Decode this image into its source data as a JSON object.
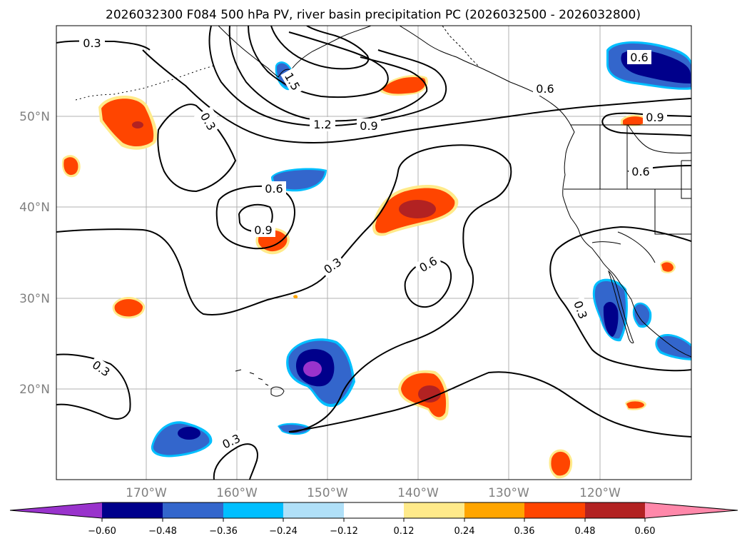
{
  "title": "2026032300 F084 500 hPa PV, river basin precipitation PC (2026032500 - 2026032800)",
  "map": {
    "extent": {
      "lon_min": -180,
      "lon_max": -110,
      "lat_min": 10,
      "lat_max": 60
    },
    "lat_ticks": [
      {
        "value": 20,
        "label": "20°N"
      },
      {
        "value": 30,
        "label": "30°N"
      },
      {
        "value": 40,
        "label": "40°N"
      },
      {
        "value": 50,
        "label": "50°N"
      }
    ],
    "lon_ticks": [
      {
        "value": -170,
        "label": "170°W"
      },
      {
        "value": -160,
        "label": "160°W"
      },
      {
        "value": -150,
        "label": "150°W"
      },
      {
        "value": -140,
        "label": "140°W"
      },
      {
        "value": -130,
        "label": "130°W"
      },
      {
        "value": -120,
        "label": "120°W"
      }
    ],
    "grid": true,
    "contour_labels": [
      "0.3",
      "0.3",
      "0.3",
      "0.3",
      "0.3",
      "0.3",
      "0.6",
      "0.6",
      "0.6",
      "0.6",
      "0.6",
      "0.9",
      "0.9",
      "0.9",
      "1.2",
      "1.5"
    ]
  },
  "colorbar": {
    "tick_labels": [
      "−0.60",
      "−0.48",
      "−0.36",
      "−0.24",
      "−0.12",
      "0.12",
      "0.24",
      "0.36",
      "0.48",
      "0.60"
    ],
    "colors": [
      "#9933cc",
      "#00008b",
      "#3366cc",
      "#00bfff",
      "#b0e0f8",
      "#ffffff",
      "#ffea8a",
      "#ffa500",
      "#ff4500",
      "#b22222",
      "#ff88aa"
    ]
  }
}
